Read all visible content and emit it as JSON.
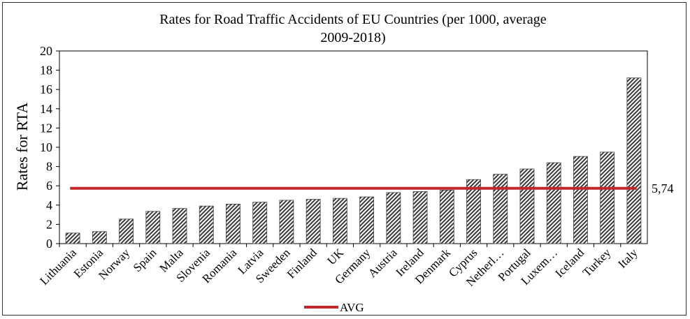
{
  "chart_data": {
    "type": "bar",
    "title": "Rates for Road Traffic Accidents of EU Countries (per 1000, average 2009-2018)",
    "title_lines": [
      "Rates for Road Traffic Accidents of EU Countries (per 1000, average",
      "2009-2018)"
    ],
    "ylabel": "Rates for RTA",
    "xlabel": "",
    "ylim": [
      0,
      20
    ],
    "yticks": [
      0,
      2,
      4,
      6,
      8,
      10,
      12,
      14,
      16,
      18,
      20
    ],
    "categories": [
      "Lithuania",
      "Estonia",
      "Norway",
      "Spain",
      "Malta",
      "Slovenia",
      "Romania",
      "Latvia",
      "Sweeden",
      "Finland",
      "UK",
      "Germany",
      "Austria",
      "Ireland",
      "Denmark",
      "Cyprus",
      "Netherl…",
      "Portugal",
      "Luxem…",
      "Iceland",
      "Turkey",
      "Italy"
    ],
    "values": [
      1.1,
      1.25,
      2.55,
      3.35,
      3.65,
      3.9,
      4.1,
      4.3,
      4.5,
      4.6,
      4.7,
      4.85,
      5.3,
      5.4,
      5.55,
      6.65,
      7.2,
      7.75,
      8.4,
      9.05,
      9.5,
      17.2
    ],
    "avg": {
      "name": "AVG",
      "value": 5.74,
      "label": "5,74",
      "color": "#c0282d"
    },
    "grid": false,
    "legend": {
      "position": "bottom",
      "entries": [
        "AVG"
      ]
    },
    "bar_style": "diagonal-hatch"
  }
}
